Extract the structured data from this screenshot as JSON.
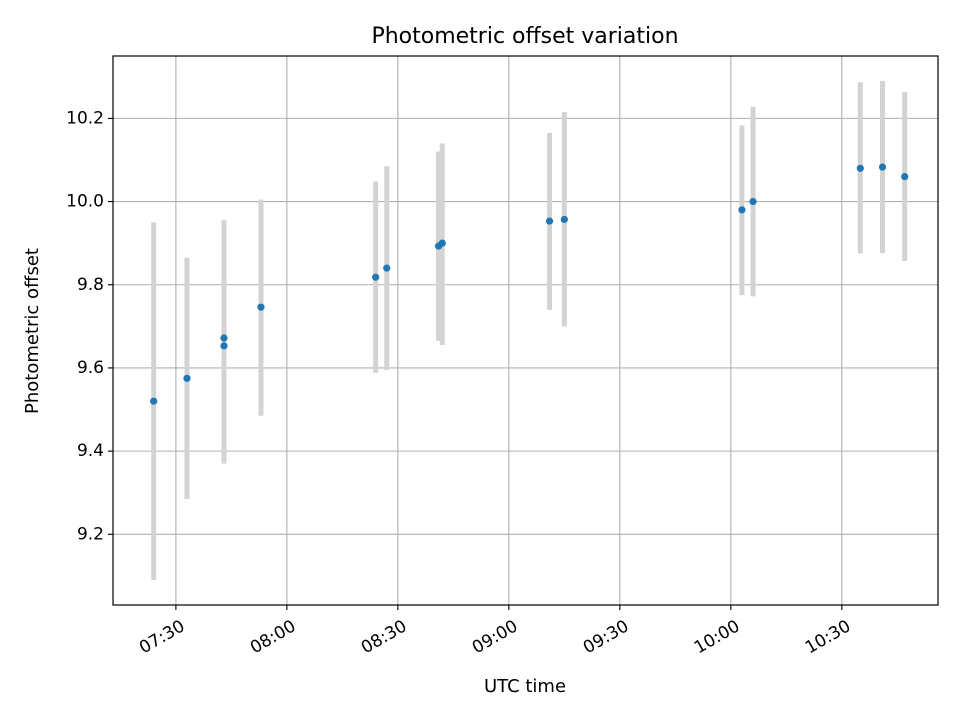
{
  "chart_data": {
    "type": "scatter",
    "title": "Photometric offset variation",
    "xlabel": "UTC time",
    "ylabel": "Photometric offset",
    "x_axis": {
      "kind": "time",
      "range": [
        "07:13",
        "10:56"
      ],
      "ticks": [
        "07:30",
        "08:00",
        "08:30",
        "09:00",
        "09:30",
        "10:00",
        "10:30"
      ]
    },
    "y_axis": {
      "range": [
        9.03,
        10.35
      ],
      "ticks": [
        9.2,
        9.4,
        9.6,
        9.8,
        10.0,
        10.2
      ],
      "tick_labels": [
        "9.2",
        "9.4",
        "9.6",
        "9.8",
        "10.0",
        "10.2"
      ]
    },
    "grid": true,
    "colors": {
      "point": "#1f77b4",
      "errorbar": "#d3d3d3"
    },
    "points": [
      {
        "x": "07:24",
        "y": 9.52,
        "low": 9.09,
        "high": 9.95
      },
      {
        "x": "07:33",
        "y": 9.575,
        "low": 9.285,
        "high": 9.865
      },
      {
        "x": "07:43",
        "y": 9.653,
        "low": 9.37,
        "high": 9.955
      },
      {
        "x": "07:43",
        "y": 9.672,
        "low": 9.39,
        "high": 9.955
      },
      {
        "x": "07:53",
        "y": 9.746,
        "low": 9.485,
        "high": 10.005
      },
      {
        "x": "08:24",
        "y": 9.818,
        "low": 9.588,
        "high": 10.048
      },
      {
        "x": "08:27",
        "y": 9.84,
        "low": 9.595,
        "high": 10.085
      },
      {
        "x": "08:41",
        "y": 9.893,
        "low": 9.665,
        "high": 10.12
      },
      {
        "x": "08:42",
        "y": 9.9,
        "low": 9.655,
        "high": 10.14
      },
      {
        "x": "09:11",
        "y": 9.953,
        "low": 9.74,
        "high": 10.165
      },
      {
        "x": "09:15",
        "y": 9.957,
        "low": 9.7,
        "high": 10.215
      },
      {
        "x": "10:03",
        "y": 9.98,
        "low": 9.775,
        "high": 10.183
      },
      {
        "x": "10:06",
        "y": 10.0,
        "low": 9.772,
        "high": 10.228
      },
      {
        "x": "10:35",
        "y": 10.08,
        "low": 9.875,
        "high": 10.287
      },
      {
        "x": "10:41",
        "y": 10.083,
        "low": 9.876,
        "high": 10.29
      },
      {
        "x": "10:47",
        "y": 10.06,
        "low": 9.857,
        "high": 10.263
      }
    ]
  }
}
